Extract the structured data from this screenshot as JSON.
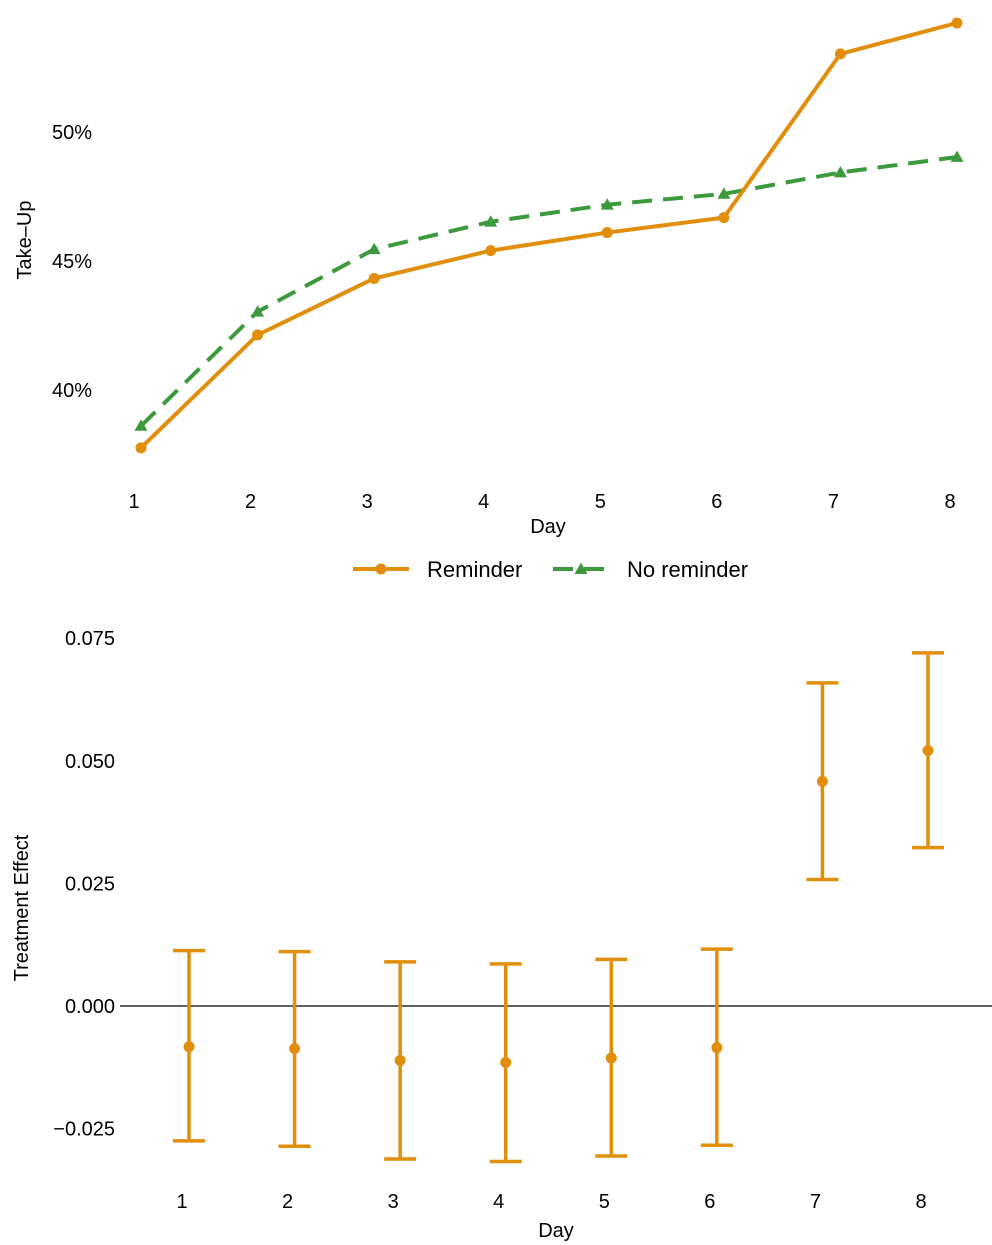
{
  "chart_data": [
    {
      "type": "line",
      "xlabel": "Day",
      "ylabel": "Take–Up",
      "x": [
        1,
        2,
        3,
        4,
        5,
        6,
        7,
        8
      ],
      "xticks": [
        "1",
        "2",
        "3",
        "4",
        "5",
        "6",
        "7",
        "8"
      ],
      "yticks": [
        {
          "value": 0.4,
          "label": "40%"
        },
        {
          "value": 0.45,
          "label": "45%"
        },
        {
          "value": 0.5,
          "label": "50%"
        }
      ],
      "ylim": [
        0.372,
        0.545
      ],
      "series": [
        {
          "name": "Reminder",
          "color": "#E08E0B",
          "dash": "solid",
          "marker": "circle",
          "values": [
            0.3775,
            0.4213,
            0.4432,
            0.454,
            0.461,
            0.4668,
            0.5303,
            0.5423
          ]
        },
        {
          "name": "No reminder",
          "color": "#3C9A3C",
          "dash": "dashed",
          "marker": "triangle",
          "values": [
            0.386,
            0.4303,
            0.4545,
            0.4652,
            0.4718,
            0.476,
            0.4843,
            0.4903
          ]
        }
      ],
      "legend": "bottom"
    },
    {
      "type": "scatter",
      "subtype": "errorbar",
      "xlabel": "Day",
      "ylabel": "Treatment Effect",
      "x": [
        1,
        2,
        3,
        4,
        5,
        6,
        7,
        8
      ],
      "xticks": [
        "1",
        "2",
        "3",
        "4",
        "5",
        "6",
        "7",
        "8"
      ],
      "yticks": [
        {
          "value": -0.025,
          "label": "−0.025"
        },
        {
          "value": 0.0,
          "label": "0.000"
        },
        {
          "value": 0.025,
          "label": "0.025"
        },
        {
          "value": 0.05,
          "label": "0.050"
        },
        {
          "value": 0.075,
          "label": "0.075"
        }
      ],
      "ylim": [
        -0.033,
        0.075
      ],
      "color": "#E08E0B",
      "reference_line": 0,
      "estimates": [
        -0.0083,
        -0.0087,
        -0.0111,
        -0.0115,
        -0.0106,
        -0.0085,
        0.0458,
        0.0521
      ],
      "ci_lower": [
        -0.0275,
        -0.0286,
        -0.0312,
        -0.0317,
        -0.0306,
        -0.0284,
        0.0258,
        0.0323
      ],
      "ci_upper": [
        0.0113,
        0.0111,
        0.009,
        0.0086,
        0.0095,
        0.0116,
        0.0659,
        0.072
      ]
    }
  ]
}
